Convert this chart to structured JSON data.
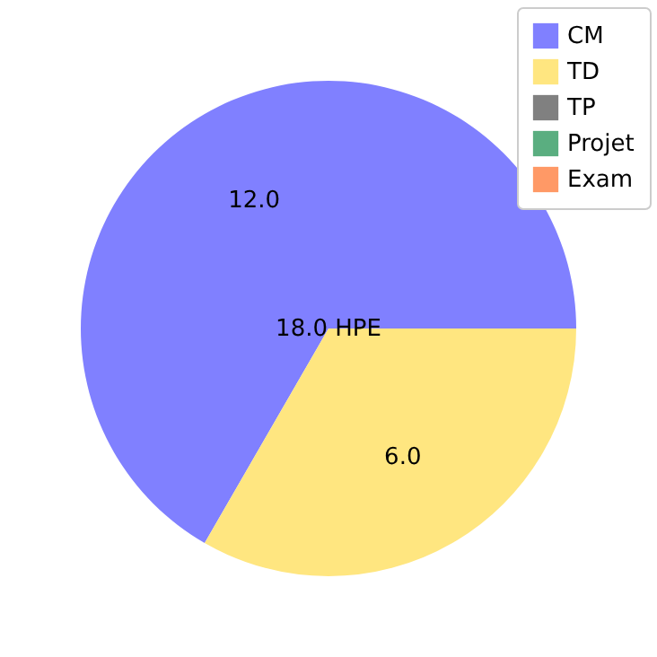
{
  "chart_data": {
    "type": "pie",
    "categories": [
      "CM",
      "TD",
      "TP",
      "Projet",
      "Exam"
    ],
    "values": [
      12,
      6,
      0,
      0,
      0
    ],
    "colors": [
      "#8080ff",
      "#ffe680",
      "#808080",
      "#5aae80",
      "#ff9966"
    ],
    "value_labels": [
      "12.0",
      "6.0",
      null,
      null,
      null
    ],
    "annotations": [
      "18.0 HPE"
    ],
    "legend": "top right"
  }
}
